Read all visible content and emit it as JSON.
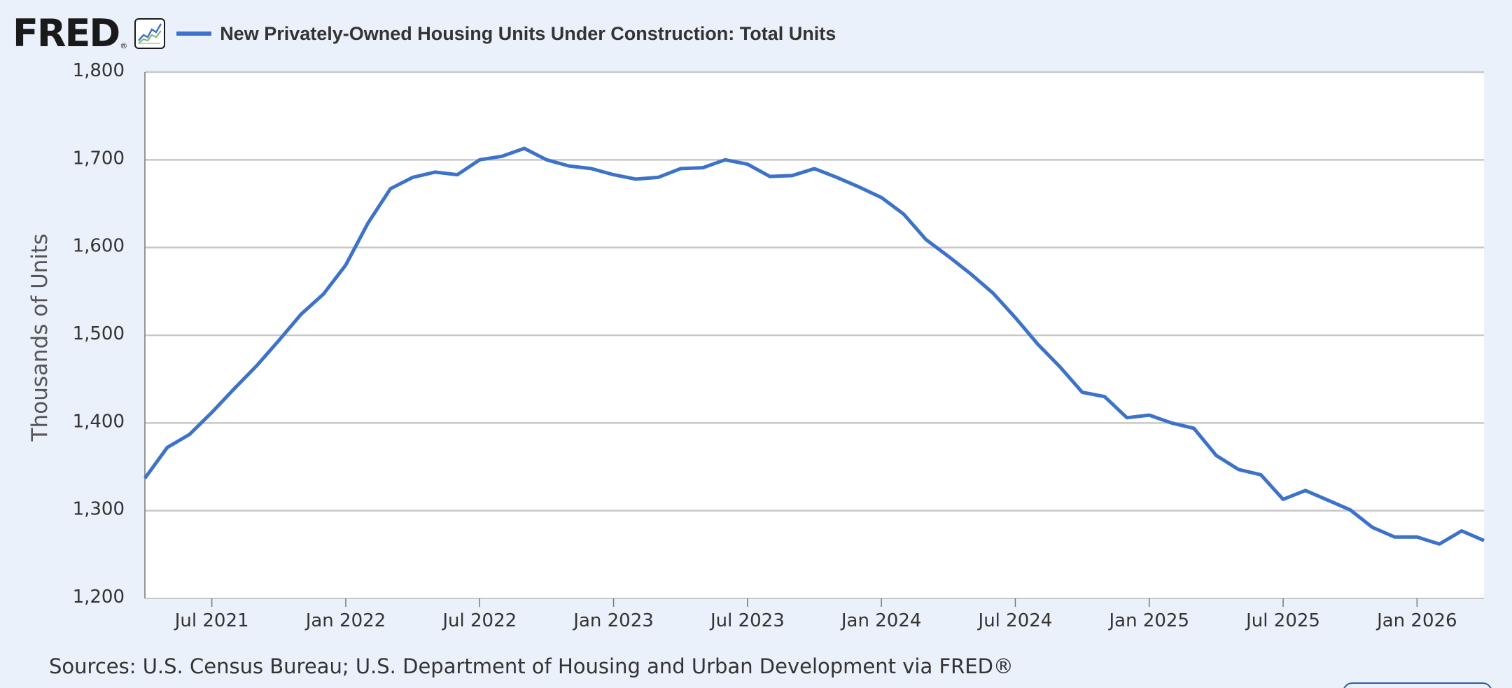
{
  "header": {
    "logo_text": "FRED",
    "logo_mark": "®",
    "chart_icon": "line-chart-icon",
    "legend_label": "New Privately-Owned Housing Units Under Construction: Total Units"
  },
  "footer": {
    "sources": "Sources: U.S. Census Bureau; U.S. Department of Housing and Urban Development via FRED®"
  },
  "colors": {
    "series": "#3d72c9",
    "background": "#eaf1fa",
    "plot_background": "#ffffff",
    "grid": "#c8c8c8"
  },
  "chart_data": {
    "type": "line",
    "title": "",
    "ylabel": "Thousands of Units",
    "xlabel": "",
    "ylim": [
      1200,
      1800
    ],
    "yticks": [
      1200,
      1300,
      1400,
      1500,
      1600,
      1700,
      1800
    ],
    "ytick_labels": [
      "1,200",
      "1,300",
      "1,400",
      "1,500",
      "1,600",
      "1,700",
      "1,800"
    ],
    "xlim": [
      "2021-04",
      "2026-04"
    ],
    "xticks": [
      "2021-07",
      "2022-01",
      "2022-07",
      "2023-01",
      "2023-07",
      "2024-01",
      "2024-07",
      "2025-01",
      "2025-07",
      "2026-01"
    ],
    "xtick_labels": [
      "Jul 2021",
      "Jan 2022",
      "Jul 2022",
      "Jan 2023",
      "Jul 2023",
      "Jan 2024",
      "Jul 2024",
      "Jan 2025",
      "Jul 2025",
      "Jan 2026"
    ],
    "grid": true,
    "legend": "top-left",
    "series": [
      {
        "name": "New Privately-Owned Housing Units Under Construction: Total Units",
        "x": [
          "2021-04",
          "2021-05",
          "2021-06",
          "2021-07",
          "2021-08",
          "2021-09",
          "2021-10",
          "2021-11",
          "2021-12",
          "2022-01",
          "2022-02",
          "2022-03",
          "2022-04",
          "2022-05",
          "2022-06",
          "2022-07",
          "2022-08",
          "2022-09",
          "2022-10",
          "2022-11",
          "2022-12",
          "2023-01",
          "2023-02",
          "2023-03",
          "2023-04",
          "2023-05",
          "2023-06",
          "2023-07",
          "2023-08",
          "2023-09",
          "2023-10",
          "2023-11",
          "2023-12",
          "2024-01",
          "2024-02",
          "2024-03",
          "2024-04",
          "2024-05",
          "2024-06",
          "2024-07",
          "2024-08",
          "2024-09",
          "2024-10",
          "2024-11",
          "2024-12",
          "2025-01",
          "2025-02",
          "2025-03",
          "2025-04",
          "2025-05",
          "2025-06",
          "2025-07",
          "2025-08",
          "2025-09",
          "2025-10",
          "2025-11",
          "2025-12",
          "2026-01",
          "2026-02",
          "2026-03",
          "2026-04"
        ],
        "values": [
          1337,
          1372,
          1387,
          1412,
          1439,
          1465,
          1494,
          1524,
          1547,
          1580,
          1628,
          1667,
          1680,
          1686,
          1683,
          1700,
          1704,
          1713,
          1700,
          1693,
          1690,
          1683,
          1678,
          1680,
          1690,
          1691,
          1700,
          1695,
          1681,
          1682,
          1690,
          1680,
          1669,
          1657,
          1638,
          1609,
          1590,
          1570,
          1548,
          1520,
          1490,
          1464,
          1435,
          1430,
          1406,
          1409,
          1400,
          1394,
          1363,
          1347,
          1341,
          1313,
          1323,
          1312,
          1301,
          1281,
          1270,
          1270,
          1262,
          1277,
          1266
        ]
      }
    ]
  }
}
